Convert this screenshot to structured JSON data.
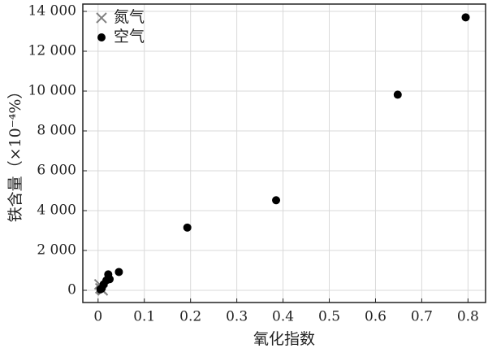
{
  "chart_data": {
    "type": "scatter",
    "x_label": "氧化指数",
    "y_label": "铁含量（×10⁻⁴%）",
    "xlim": [
      -0.033,
      0.838
    ],
    "ylim": [
      -612,
      14367
    ],
    "xticks": [
      0,
      0.1,
      0.2,
      0.3,
      0.4,
      0.5,
      0.6,
      0.7,
      0.8
    ],
    "yticks": [
      0,
      {
        "value": 2000,
        "label": "2 000"
      },
      {
        "value": 4000,
        "label": "4 000"
      },
      {
        "value": 6000,
        "label": "6 000"
      },
      {
        "value": 8000,
        "label": "8 000"
      },
      {
        "value": 10000,
        "label": "10 000"
      },
      {
        "value": 12000,
        "label": "12 000"
      },
      {
        "value": 14000,
        "label": "14 000"
      }
    ],
    "grid": true,
    "legend": "upper left",
    "series": [
      {
        "name": "氮气",
        "color": "#808080",
        "marker": "x",
        "x": [
          0.003,
          0.005,
          0.008,
          0.01
        ],
        "values": [
          300,
          100,
          50,
          0
        ]
      },
      {
        "name": "空气",
        "color": "#000000",
        "marker": "o",
        "x": [
          0.795,
          0.648,
          0.385,
          0.193,
          0.045,
          0.022,
          0.025,
          0.018,
          0.012,
          0.008,
          0.005
        ],
        "values": [
          13700,
          9820,
          4520,
          3150,
          920,
          800,
          560,
          500,
          300,
          100,
          50
        ]
      }
    ]
  }
}
